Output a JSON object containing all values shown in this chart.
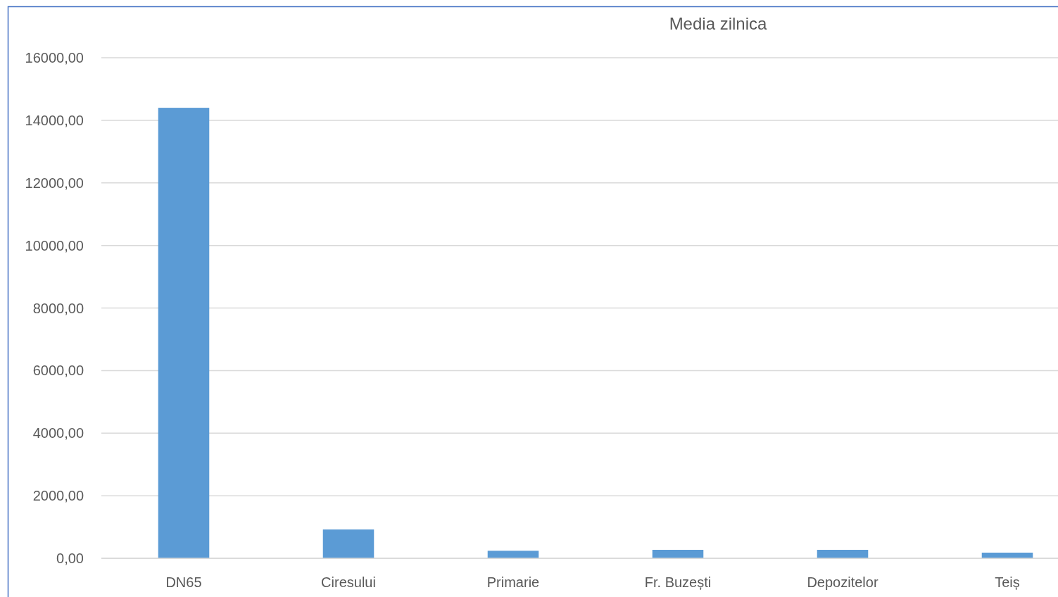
{
  "chart_data": {
    "type": "bar",
    "title": "Media zilnica",
    "categories": [
      "DN65",
      "Ciresului",
      "Primarie",
      "Fr. Buzești",
      "Depozitelor",
      "Teiș"
    ],
    "values": [
      14400,
      920,
      240,
      270,
      270,
      180
    ],
    "color": "#5b9bd5",
    "ylim": [
      0,
      16000
    ],
    "yticks": [
      {
        "value": 0,
        "label": "0,00"
      },
      {
        "value": 2000,
        "label": "2000,00"
      },
      {
        "value": 4000,
        "label": "4000,00"
      },
      {
        "value": 6000,
        "label": "6000,00"
      },
      {
        "value": 8000,
        "label": "8000,00"
      },
      {
        "value": 10000,
        "label": "10000,00"
      },
      {
        "value": 12000,
        "label": "12000,00"
      },
      {
        "value": 14000,
        "label": "14000,00"
      },
      {
        "value": 16000,
        "label": "16000,00"
      }
    ],
    "grid": "y"
  }
}
